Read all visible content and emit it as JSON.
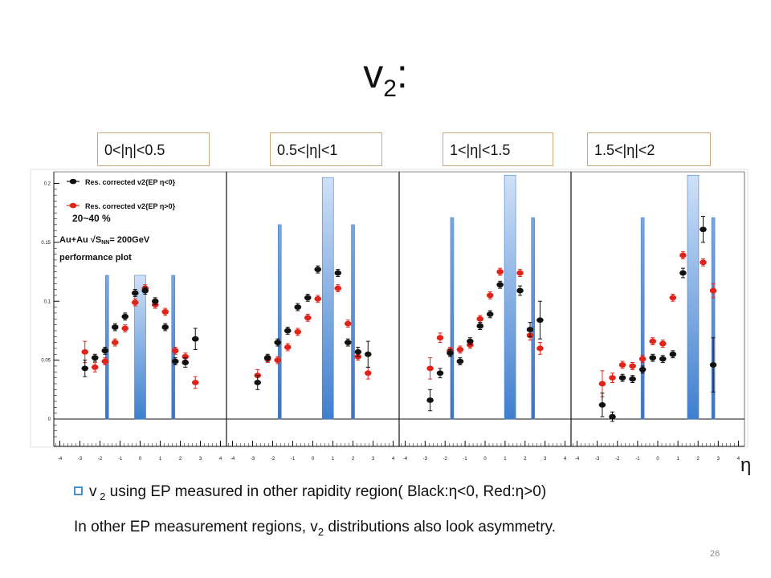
{
  "slide": {
    "title_main": "v",
    "title_sub": "2",
    "title_tail": ":",
    "slide_number": "26",
    "eta_symbol": "η",
    "bullet": {
      "prefix": "v",
      "sub": " 2",
      "text": " using EP measured in other rapidity region( Black:η<0, Red:η>0)"
    },
    "line2": {
      "text_a": "In other EP measurement  regions, v",
      "sub": "2",
      "text_b": " distributions also look  asymmetry."
    },
    "ranges": [
      "0<|η|<0.5",
      "0.5<|η|<1",
      "1<|η|<1.5",
      "1.5<|η|<2"
    ],
    "colors": {
      "black_series": "#111111",
      "red_series": "#e2231a",
      "band": "#3f7fcf",
      "box_border": "#c9a97a"
    }
  },
  "chart_data": {
    "type": "scatter",
    "ylim": [
      -0.02,
      0.205
    ],
    "xlim": [
      -4.3,
      4.3
    ],
    "y_ticks": [
      "0",
      "0.05",
      "0.1",
      "0.15",
      "0.2"
    ],
    "y_tick_values": [
      0,
      0.05,
      0.1,
      0.15,
      0.2
    ],
    "x_ticks": [
      "-4",
      "-3",
      "-2",
      "-1",
      "0",
      "1",
      "2",
      "3",
      "4"
    ],
    "x_tick_values": [
      -4,
      -3,
      -2,
      -1,
      0,
      1,
      2,
      3,
      4
    ],
    "legend": {
      "entries": [
        "Res. corrected v2{EP η<0}",
        "Res. corrected v2{EP η>0}"
      ],
      "centrality": "20~40 %",
      "system_prefix": "Au+Au √S",
      "system_sub": "NN",
      "system_suffix": "= 200GeV",
      "note": "performance plot"
    },
    "panels": [
      {
        "range": "0<|η|<0.5",
        "bands": [
          {
            "x": -1.65,
            "y_top": 0.122,
            "wide": false
          },
          {
            "x": 0.0,
            "y_top": 0.122,
            "wide": true
          },
          {
            "x": 1.65,
            "y_top": 0.122,
            "wide": false
          }
        ],
        "black": [
          [
            -2.75,
            0.043,
            0.007
          ],
          [
            -2.25,
            0.052,
            0.003
          ],
          [
            -1.75,
            0.058,
            0.003
          ],
          [
            -1.25,
            0.078,
            0.003
          ],
          [
            -0.75,
            0.087,
            0.003
          ],
          [
            -0.25,
            0.107,
            0.003
          ],
          [
            0.25,
            0.109,
            0.003
          ],
          [
            0.75,
            0.1,
            0.003
          ],
          [
            1.25,
            0.078,
            0.003
          ],
          [
            1.75,
            0.049,
            0.003
          ],
          [
            2.25,
            0.048,
            0.004
          ],
          [
            2.75,
            0.068,
            0.009
          ]
        ],
        "red": [
          [
            -2.75,
            0.057,
            0.009
          ],
          [
            -2.25,
            0.044,
            0.004
          ],
          [
            -1.75,
            0.049,
            0.003
          ],
          [
            -1.25,
            0.065,
            0.003
          ],
          [
            -0.75,
            0.077,
            0.003
          ],
          [
            -0.25,
            0.099,
            0.003
          ],
          [
            0.25,
            0.111,
            0.003
          ],
          [
            0.75,
            0.097,
            0.003
          ],
          [
            1.25,
            0.091,
            0.003
          ],
          [
            1.75,
            0.058,
            0.003
          ],
          [
            2.25,
            0.053,
            0.003
          ],
          [
            2.75,
            0.031,
            0.005
          ]
        ]
      },
      {
        "range": "0.5<|η|<1",
        "bands": [
          {
            "x": -1.65,
            "y_top": 0.165,
            "wide": false
          },
          {
            "x": 0.75,
            "y_top": 0.205,
            "wide": true
          },
          {
            "x": 2.0,
            "y_top": 0.165,
            "wide": false
          }
        ],
        "black": [
          [
            -2.75,
            0.031,
            0.006
          ],
          [
            -2.25,
            0.052,
            0.003
          ],
          [
            -1.75,
            0.065,
            0.003
          ],
          [
            -1.25,
            0.075,
            0.003
          ],
          [
            -0.75,
            0.095,
            0.003
          ],
          [
            -0.25,
            0.103,
            0.003
          ],
          [
            0.25,
            0.127,
            0.003
          ],
          [
            1.25,
            0.124,
            0.003
          ],
          [
            1.75,
            0.065,
            0.003
          ],
          [
            2.25,
            0.057,
            0.004
          ],
          [
            2.75,
            0.055,
            0.011
          ]
        ],
        "red": [
          [
            -2.75,
            0.037,
            0.005
          ],
          [
            -2.25,
            0.051,
            0.003
          ],
          [
            -1.75,
            0.05,
            0.003
          ],
          [
            -1.25,
            0.061,
            0.003
          ],
          [
            -0.75,
            0.074,
            0.003
          ],
          [
            -0.25,
            0.086,
            0.003
          ],
          [
            0.25,
            0.102,
            0.003
          ],
          [
            1.25,
            0.111,
            0.003
          ],
          [
            1.75,
            0.081,
            0.003
          ],
          [
            2.25,
            0.053,
            0.003
          ],
          [
            2.75,
            0.039,
            0.005
          ]
        ]
      },
      {
        "range": "1<|η|<1.5",
        "bands": [
          {
            "x": -1.65,
            "y_top": 0.171,
            "wide": false
          },
          {
            "x": 1.25,
            "y_top": 0.207,
            "wide": true
          },
          {
            "x": 2.4,
            "y_top": 0.171,
            "wide": false
          }
        ],
        "black": [
          [
            -2.75,
            0.016,
            0.009
          ],
          [
            -2.25,
            0.039,
            0.004
          ],
          [
            -1.75,
            0.056,
            0.003
          ],
          [
            -1.25,
            0.049,
            0.003
          ],
          [
            -0.75,
            0.066,
            0.003
          ],
          [
            -0.25,
            0.079,
            0.003
          ],
          [
            0.25,
            0.089,
            0.003
          ],
          [
            0.75,
            0.114,
            0.003
          ],
          [
            1.75,
            0.109,
            0.004
          ],
          [
            2.25,
            0.076,
            0.006
          ],
          [
            2.75,
            0.084,
            0.016
          ]
        ],
        "red": [
          [
            -2.75,
            0.043,
            0.009
          ],
          [
            -2.25,
            0.069,
            0.004
          ],
          [
            -1.75,
            0.058,
            0.003
          ],
          [
            -1.25,
            0.059,
            0.003
          ],
          [
            -0.75,
            0.063,
            0.003
          ],
          [
            -0.25,
            0.085,
            0.003
          ],
          [
            0.25,
            0.105,
            0.003
          ],
          [
            0.75,
            0.125,
            0.003
          ],
          [
            1.75,
            0.124,
            0.003
          ],
          [
            2.25,
            0.071,
            0.004
          ],
          [
            2.75,
            0.06,
            0.005
          ]
        ]
      },
      {
        "range": "1.5<|η|<2",
        "bands": [
          {
            "x": -0.75,
            "y_top": 0.171,
            "wide": false
          },
          {
            "x": 1.75,
            "y_top": 0.207,
            "wide": true
          },
          {
            "x": 2.75,
            "y_top": 0.171,
            "wide": false
          }
        ],
        "black": [
          [
            -2.75,
            0.012,
            0.01
          ],
          [
            -2.25,
            0.002,
            0.004
          ],
          [
            -1.75,
            0.035,
            0.003
          ],
          [
            -1.25,
            0.034,
            0.003
          ],
          [
            -0.75,
            0.042,
            0.003
          ],
          [
            -0.25,
            0.052,
            0.003
          ],
          [
            0.25,
            0.051,
            0.003
          ],
          [
            0.75,
            0.055,
            0.003
          ],
          [
            1.25,
            0.124,
            0.004
          ],
          [
            2.25,
            0.161,
            0.011
          ],
          [
            2.75,
            0.046,
            0.023
          ]
        ],
        "red": [
          [
            -2.75,
            0.03,
            0.011
          ],
          [
            -2.25,
            0.035,
            0.004
          ],
          [
            -1.75,
            0.046,
            0.003
          ],
          [
            -1.25,
            0.045,
            0.003
          ],
          [
            -0.75,
            0.051,
            0.003
          ],
          [
            -0.25,
            0.066,
            0.003
          ],
          [
            0.25,
            0.064,
            0.003
          ],
          [
            0.75,
            0.103,
            0.003
          ],
          [
            1.25,
            0.139,
            0.003
          ],
          [
            2.25,
            0.133,
            0.003
          ],
          [
            2.75,
            0.109,
            0.006
          ]
        ]
      }
    ]
  }
}
